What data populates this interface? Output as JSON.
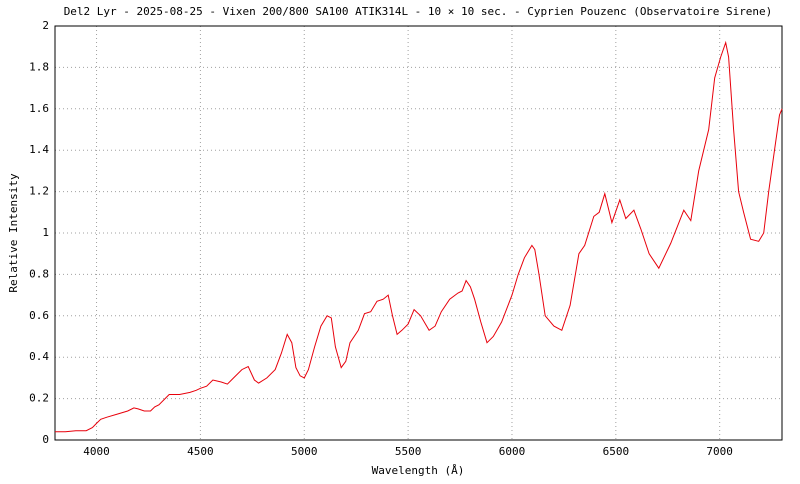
{
  "chart_data": {
    "type": "line",
    "title": "Del2 Lyr - 2025-08-25 - Vixen 200/800 SA100 ATIK314L - 10 × 10 sec. - Cyprien Pouzenc (Observatoire Sirene)",
    "x_label": "Wavelength (Å)",
    "y_label": "Relative Intensity",
    "xlim": [
      3800,
      7300
    ],
    "xticks": [
      4000,
      4500,
      5000,
      5500,
      6000,
      6500,
      7000
    ],
    "ylim": [
      0,
      2
    ],
    "yticks": [
      0,
      0.2,
      0.4,
      0.6,
      0.8,
      1,
      1.2,
      1.4,
      1.6,
      1.8,
      2
    ],
    "grid": true,
    "x": [
      3800,
      3850,
      3900,
      3950,
      3980,
      4000,
      4020,
      4050,
      4100,
      4150,
      4180,
      4200,
      4230,
      4260,
      4280,
      4300,
      4330,
      4350,
      4400,
      4450,
      4480,
      4500,
      4530,
      4560,
      4600,
      4630,
      4660,
      4700,
      4730,
      4760,
      4780,
      4820,
      4860,
      4890,
      4918,
      4940,
      4960,
      4980,
      5000,
      5020,
      5050,
      5080,
      5110,
      5130,
      5150,
      5178,
      5200,
      5220,
      5260,
      5290,
      5320,
      5350,
      5380,
      5404,
      5425,
      5447,
      5470,
      5500,
      5529,
      5560,
      5601,
      5630,
      5660,
      5700,
      5740,
      5760,
      5779,
      5800,
      5820,
      5850,
      5880,
      5910,
      5950,
      6000,
      6030,
      6060,
      6096,
      6110,
      6130,
      6160,
      6202,
      6240,
      6280,
      6322,
      6350,
      6394,
      6420,
      6447,
      6481,
      6519,
      6548,
      6587,
      6620,
      6660,
      6707,
      6764,
      6827,
      6861,
      6899,
      6947,
      6976,
      7005,
      7029,
      7043,
      7067,
      7091,
      7115,
      7149,
      7188,
      7212,
      7236,
      7264,
      7288,
      7300
    ],
    "series": [
      {
        "name": "Del2 Lyr",
        "color": "#e8000b",
        "values": [
          0.04,
          0.04,
          0.045,
          0.045,
          0.06,
          0.08,
          0.1,
          0.11,
          0.125,
          0.14,
          0.155,
          0.15,
          0.14,
          0.14,
          0.16,
          0.17,
          0.2,
          0.22,
          0.22,
          0.23,
          0.24,
          0.25,
          0.26,
          0.29,
          0.28,
          0.27,
          0.3,
          0.34,
          0.355,
          0.29,
          0.275,
          0.3,
          0.34,
          0.42,
          0.51,
          0.47,
          0.35,
          0.31,
          0.3,
          0.34,
          0.45,
          0.55,
          0.6,
          0.59,
          0.45,
          0.35,
          0.38,
          0.47,
          0.53,
          0.61,
          0.62,
          0.67,
          0.68,
          0.7,
          0.6,
          0.51,
          0.53,
          0.56,
          0.63,
          0.6,
          0.53,
          0.55,
          0.62,
          0.68,
          0.71,
          0.72,
          0.77,
          0.74,
          0.68,
          0.57,
          0.47,
          0.5,
          0.57,
          0.7,
          0.8,
          0.88,
          0.94,
          0.92,
          0.8,
          0.6,
          0.55,
          0.53,
          0.65,
          0.9,
          0.94,
          1.08,
          1.1,
          1.19,
          1.05,
          1.16,
          1.07,
          1.11,
          1.02,
          0.9,
          0.83,
          0.95,
          1.11,
          1.06,
          1.3,
          1.5,
          1.75,
          1.85,
          1.92,
          1.85,
          1.5,
          1.2,
          1.1,
          0.97,
          0.96,
          1.0,
          1.2,
          1.4,
          1.57,
          1.6
        ]
      }
    ]
  }
}
